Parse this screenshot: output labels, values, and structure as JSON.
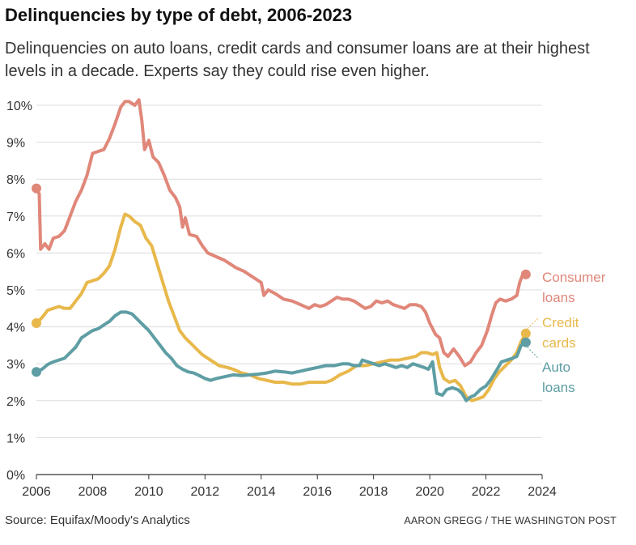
{
  "title": "Delinquencies by type of debt, 2006-2023",
  "subtitle": "Delinquencies on auto loans, credit cards and consumer loans are at their highest levels in a decade. Experts say they could rise even higher.",
  "source": "Source: Equifax/Moody's Analytics",
  "credit": "AARON GREGG / THE WASHINGTON POST",
  "chart_data": {
    "type": "line",
    "xlabel": "",
    "ylabel": "",
    "xlim": [
      2006,
      2024
    ],
    "ylim": [
      0,
      10
    ],
    "grid": true,
    "x_ticks": [
      "2006",
      "2008",
      "2010",
      "2012",
      "2014",
      "2016",
      "2018",
      "2020",
      "2022",
      "2024"
    ],
    "y_ticks": [
      "0%",
      "1%",
      "2%",
      "3%",
      "4%",
      "5%",
      "6%",
      "7%",
      "8%",
      "9%",
      "10%"
    ],
    "series": [
      {
        "name": "Consumer loans",
        "label_lines": [
          "Consumer",
          "loans"
        ],
        "color": "#e0877a",
        "points": [
          [
            2006.0,
            7.75
          ],
          [
            2006.1,
            7.6
          ],
          [
            2006.15,
            6.1
          ],
          [
            2006.3,
            6.25
          ],
          [
            2006.45,
            6.1
          ],
          [
            2006.6,
            6.4
          ],
          [
            2006.8,
            6.45
          ],
          [
            2007.0,
            6.6
          ],
          [
            2007.2,
            7.0
          ],
          [
            2007.4,
            7.4
          ],
          [
            2007.6,
            7.7
          ],
          [
            2007.8,
            8.1
          ],
          [
            2008.0,
            8.7
          ],
          [
            2008.2,
            8.75
          ],
          [
            2008.4,
            8.8
          ],
          [
            2008.6,
            9.1
          ],
          [
            2008.8,
            9.5
          ],
          [
            2009.0,
            9.95
          ],
          [
            2009.15,
            10.1
          ],
          [
            2009.3,
            10.1
          ],
          [
            2009.5,
            10.0
          ],
          [
            2009.65,
            10.15
          ],
          [
            2009.75,
            9.6
          ],
          [
            2009.85,
            8.8
          ],
          [
            2010.0,
            9.05
          ],
          [
            2010.15,
            8.6
          ],
          [
            2010.35,
            8.45
          ],
          [
            2010.55,
            8.1
          ],
          [
            2010.75,
            7.7
          ],
          [
            2010.95,
            7.5
          ],
          [
            2011.1,
            7.25
          ],
          [
            2011.2,
            6.7
          ],
          [
            2011.3,
            6.95
          ],
          [
            2011.45,
            6.5
          ],
          [
            2011.7,
            6.45
          ],
          [
            2011.9,
            6.2
          ],
          [
            2012.1,
            6.0
          ],
          [
            2012.4,
            5.9
          ],
          [
            2012.7,
            5.8
          ],
          [
            2012.9,
            5.7
          ],
          [
            2013.1,
            5.6
          ],
          [
            2013.4,
            5.5
          ],
          [
            2013.6,
            5.4
          ],
          [
            2013.8,
            5.3
          ],
          [
            2014.0,
            5.2
          ],
          [
            2014.1,
            4.85
          ],
          [
            2014.25,
            5.0
          ],
          [
            2014.5,
            4.9
          ],
          [
            2014.8,
            4.75
          ],
          [
            2015.1,
            4.7
          ],
          [
            2015.4,
            4.6
          ],
          [
            2015.7,
            4.5
          ],
          [
            2015.9,
            4.6
          ],
          [
            2016.1,
            4.55
          ],
          [
            2016.3,
            4.6
          ],
          [
            2016.5,
            4.7
          ],
          [
            2016.7,
            4.8
          ],
          [
            2016.9,
            4.75
          ],
          [
            2017.1,
            4.75
          ],
          [
            2017.3,
            4.7
          ],
          [
            2017.5,
            4.6
          ],
          [
            2017.7,
            4.5
          ],
          [
            2017.9,
            4.55
          ],
          [
            2018.1,
            4.7
          ],
          [
            2018.3,
            4.65
          ],
          [
            2018.5,
            4.7
          ],
          [
            2018.7,
            4.6
          ],
          [
            2018.9,
            4.55
          ],
          [
            2019.1,
            4.5
          ],
          [
            2019.3,
            4.6
          ],
          [
            2019.5,
            4.6
          ],
          [
            2019.7,
            4.55
          ],
          [
            2019.85,
            4.4
          ],
          [
            2020.0,
            4.1
          ],
          [
            2020.2,
            3.8
          ],
          [
            2020.35,
            3.7
          ],
          [
            2020.5,
            3.3
          ],
          [
            2020.65,
            3.2
          ],
          [
            2020.85,
            3.4
          ],
          [
            2021.05,
            3.2
          ],
          [
            2021.25,
            2.95
          ],
          [
            2021.45,
            3.05
          ],
          [
            2021.65,
            3.3
          ],
          [
            2021.85,
            3.5
          ],
          [
            2022.05,
            3.9
          ],
          [
            2022.2,
            4.3
          ],
          [
            2022.35,
            4.65
          ],
          [
            2022.5,
            4.75
          ],
          [
            2022.7,
            4.7
          ],
          [
            2022.9,
            4.75
          ],
          [
            2023.1,
            4.85
          ],
          [
            2023.2,
            5.2
          ],
          [
            2023.3,
            5.4
          ],
          [
            2023.42,
            5.42
          ]
        ]
      },
      {
        "name": "Credit cards",
        "label_lines": [
          "Credit",
          "cards"
        ],
        "color": "#e8b84b",
        "points": [
          [
            2006.0,
            4.1
          ],
          [
            2006.2,
            4.25
          ],
          [
            2006.4,
            4.45
          ],
          [
            2006.6,
            4.5
          ],
          [
            2006.8,
            4.55
          ],
          [
            2007.0,
            4.5
          ],
          [
            2007.2,
            4.5
          ],
          [
            2007.4,
            4.7
          ],
          [
            2007.6,
            4.9
          ],
          [
            2007.8,
            5.2
          ],
          [
            2008.0,
            5.25
          ],
          [
            2008.2,
            5.3
          ],
          [
            2008.4,
            5.45
          ],
          [
            2008.6,
            5.65
          ],
          [
            2008.8,
            6.1
          ],
          [
            2009.0,
            6.7
          ],
          [
            2009.15,
            7.05
          ],
          [
            2009.3,
            7.0
          ],
          [
            2009.5,
            6.85
          ],
          [
            2009.7,
            6.75
          ],
          [
            2009.9,
            6.4
          ],
          [
            2010.1,
            6.2
          ],
          [
            2010.3,
            5.7
          ],
          [
            2010.5,
            5.2
          ],
          [
            2010.7,
            4.7
          ],
          [
            2010.9,
            4.3
          ],
          [
            2011.1,
            3.9
          ],
          [
            2011.3,
            3.7
          ],
          [
            2011.5,
            3.55
          ],
          [
            2011.7,
            3.4
          ],
          [
            2011.9,
            3.25
          ],
          [
            2012.1,
            3.15
          ],
          [
            2012.3,
            3.05
          ],
          [
            2012.5,
            2.95
          ],
          [
            2012.8,
            2.9
          ],
          [
            2013.0,
            2.85
          ],
          [
            2013.3,
            2.75
          ],
          [
            2013.6,
            2.7
          ],
          [
            2013.9,
            2.6
          ],
          [
            2014.2,
            2.55
          ],
          [
            2014.5,
            2.5
          ],
          [
            2014.8,
            2.5
          ],
          [
            2015.1,
            2.45
          ],
          [
            2015.4,
            2.45
          ],
          [
            2015.7,
            2.5
          ],
          [
            2016.0,
            2.5
          ],
          [
            2016.3,
            2.5
          ],
          [
            2016.5,
            2.55
          ],
          [
            2016.8,
            2.7
          ],
          [
            2017.1,
            2.8
          ],
          [
            2017.4,
            2.95
          ],
          [
            2017.7,
            2.95
          ],
          [
            2018.0,
            3.0
          ],
          [
            2018.3,
            3.05
          ],
          [
            2018.6,
            3.1
          ],
          [
            2018.9,
            3.1
          ],
          [
            2019.2,
            3.15
          ],
          [
            2019.5,
            3.2
          ],
          [
            2019.7,
            3.3
          ],
          [
            2019.9,
            3.3
          ],
          [
            2020.1,
            3.25
          ],
          [
            2020.25,
            3.3
          ],
          [
            2020.35,
            2.9
          ],
          [
            2020.5,
            2.6
          ],
          [
            2020.7,
            2.5
          ],
          [
            2020.9,
            2.55
          ],
          [
            2021.1,
            2.4
          ],
          [
            2021.3,
            2.1
          ],
          [
            2021.5,
            2.0
          ],
          [
            2021.7,
            2.05
          ],
          [
            2021.9,
            2.1
          ],
          [
            2022.1,
            2.3
          ],
          [
            2022.3,
            2.6
          ],
          [
            2022.5,
            2.8
          ],
          [
            2022.7,
            2.95
          ],
          [
            2022.9,
            3.1
          ],
          [
            2023.1,
            3.3
          ],
          [
            2023.25,
            3.6
          ],
          [
            2023.42,
            3.82
          ]
        ]
      },
      {
        "name": "Auto loans",
        "label_lines": [
          "Auto",
          "loans"
        ],
        "color": "#5e9ea4",
        "points": [
          [
            2006.0,
            2.78
          ],
          [
            2006.2,
            2.85
          ],
          [
            2006.4,
            2.98
          ],
          [
            2006.6,
            3.05
          ],
          [
            2006.8,
            3.1
          ],
          [
            2007.0,
            3.15
          ],
          [
            2007.2,
            3.3
          ],
          [
            2007.4,
            3.45
          ],
          [
            2007.6,
            3.7
          ],
          [
            2007.8,
            3.8
          ],
          [
            2008.0,
            3.9
          ],
          [
            2008.2,
            3.95
          ],
          [
            2008.4,
            4.05
          ],
          [
            2008.6,
            4.15
          ],
          [
            2008.8,
            4.3
          ],
          [
            2009.0,
            4.4
          ],
          [
            2009.2,
            4.4
          ],
          [
            2009.4,
            4.35
          ],
          [
            2009.6,
            4.2
          ],
          [
            2009.8,
            4.05
          ],
          [
            2010.0,
            3.9
          ],
          [
            2010.2,
            3.7
          ],
          [
            2010.4,
            3.5
          ],
          [
            2010.6,
            3.3
          ],
          [
            2010.8,
            3.15
          ],
          [
            2011.0,
            2.95
          ],
          [
            2011.2,
            2.85
          ],
          [
            2011.4,
            2.78
          ],
          [
            2011.6,
            2.75
          ],
          [
            2011.8,
            2.68
          ],
          [
            2012.0,
            2.6
          ],
          [
            2012.2,
            2.55
          ],
          [
            2012.4,
            2.6
          ],
          [
            2012.7,
            2.65
          ],
          [
            2013.0,
            2.7
          ],
          [
            2013.3,
            2.68
          ],
          [
            2013.6,
            2.7
          ],
          [
            2013.9,
            2.72
          ],
          [
            2014.2,
            2.75
          ],
          [
            2014.5,
            2.8
          ],
          [
            2014.8,
            2.78
          ],
          [
            2015.1,
            2.75
          ],
          [
            2015.4,
            2.8
          ],
          [
            2015.7,
            2.85
          ],
          [
            2016.0,
            2.9
          ],
          [
            2016.3,
            2.95
          ],
          [
            2016.6,
            2.95
          ],
          [
            2016.9,
            3.0
          ],
          [
            2017.1,
            3.0
          ],
          [
            2017.3,
            2.95
          ],
          [
            2017.5,
            2.95
          ],
          [
            2017.6,
            3.1
          ],
          [
            2017.8,
            3.05
          ],
          [
            2018.0,
            3.0
          ],
          [
            2018.2,
            2.95
          ],
          [
            2018.4,
            3.0
          ],
          [
            2018.6,
            2.95
          ],
          [
            2018.8,
            2.9
          ],
          [
            2019.0,
            2.95
          ],
          [
            2019.2,
            2.9
          ],
          [
            2019.4,
            3.0
          ],
          [
            2019.6,
            2.95
          ],
          [
            2019.8,
            2.9
          ],
          [
            2019.95,
            2.85
          ],
          [
            2020.1,
            3.05
          ],
          [
            2020.25,
            2.2
          ],
          [
            2020.45,
            2.15
          ],
          [
            2020.6,
            2.3
          ],
          [
            2020.8,
            2.35
          ],
          [
            2021.0,
            2.3
          ],
          [
            2021.15,
            2.2
          ],
          [
            2021.3,
            2.0
          ],
          [
            2021.45,
            2.1
          ],
          [
            2021.6,
            2.15
          ],
          [
            2021.8,
            2.3
          ],
          [
            2022.0,
            2.4
          ],
          [
            2022.2,
            2.6
          ],
          [
            2022.4,
            2.85
          ],
          [
            2022.55,
            3.05
          ],
          [
            2022.75,
            3.1
          ],
          [
            2022.95,
            3.15
          ],
          [
            2023.1,
            3.2
          ],
          [
            2023.25,
            3.5
          ],
          [
            2023.42,
            3.58
          ]
        ]
      }
    ]
  }
}
